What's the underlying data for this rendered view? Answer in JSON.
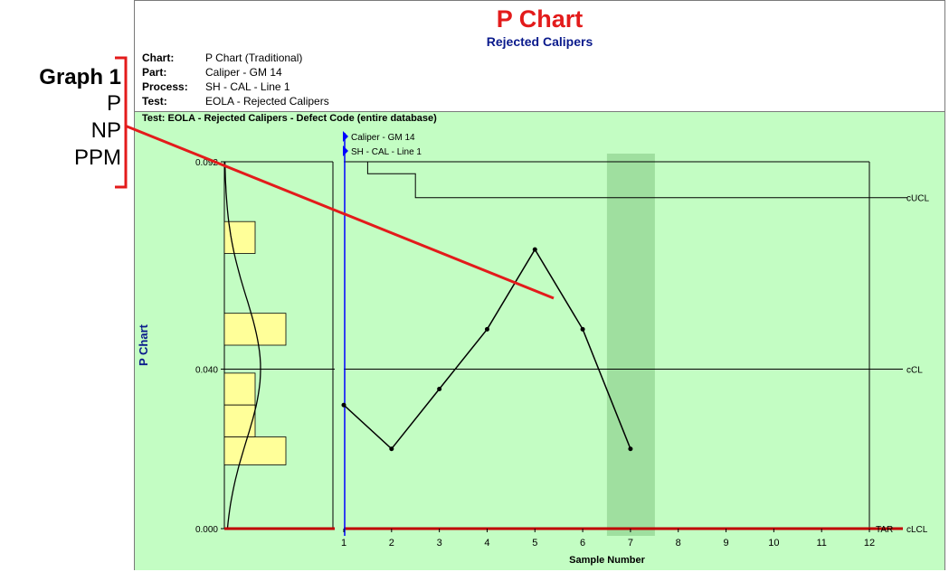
{
  "header": {
    "title": "P Chart",
    "subtitle": "Rejected Calipers"
  },
  "info": [
    {
      "label": "Chart:",
      "value": "P Chart (Traditional)"
    },
    {
      "label": "Part:",
      "value": "Caliper - GM 14"
    },
    {
      "label": "Process:",
      "value": "SH - CAL - Line 1"
    },
    {
      "label": "Test:",
      "value": "EOLA - Rejected Calipers"
    }
  ],
  "test_line": "Test: EOLA - Rejected Calipers - Defect Code (entire database)",
  "side_menu": {
    "graph": "Graph 1",
    "options": [
      "P",
      "NP",
      "PPM"
    ]
  },
  "chart_data": {
    "type": "line",
    "title": "P Chart",
    "subtitle": "Rejected Calipers",
    "xlabel": "Sample Number",
    "ylabel": "P Chart",
    "x": [
      1,
      2,
      3,
      4,
      5,
      6,
      7
    ],
    "series": [
      {
        "values": [
          0.031,
          0.02,
          0.035,
          0.05,
          0.07,
          0.05,
          0.02
        ]
      }
    ],
    "xticks": [
      1,
      2,
      3,
      4,
      5,
      6,
      7,
      8,
      9,
      10,
      11,
      12
    ],
    "yticks": [
      {
        "value": 0,
        "label": "0.000"
      },
      {
        "value": 0.04,
        "label": "0.040"
      },
      {
        "value": 0.092,
        "label": "0.092"
      }
    ],
    "xlim": [
      1,
      12
    ],
    "ylim": [
      0,
      0.092
    ],
    "control_lines": [
      {
        "name": "cUCL",
        "steps": [
          [
            1,
            0.092
          ],
          [
            1.5,
            0.092
          ],
          [
            1.5,
            0.089
          ],
          [
            2.5,
            0.089
          ],
          [
            2.5,
            0.083
          ],
          [
            12.8,
            0.083
          ]
        ]
      },
      {
        "name": "cCL",
        "value": 0.04
      },
      {
        "name": "cLCL",
        "value": 0
      }
    ],
    "target_label": "TAR",
    "markers": [
      "Caliper - GM 14",
      "SH - CAL - Line 1"
    ],
    "highlight_x": 7,
    "histogram": {
      "bins": [
        {
          "y0": 0.069,
          "y1": 0.077,
          "count": 1
        },
        {
          "y0": 0.046,
          "y1": 0.054,
          "count": 2
        },
        {
          "y0": 0.031,
          "y1": 0.039,
          "count": 1
        },
        {
          "y0": 0.023,
          "y1": 0.031,
          "count": 1
        },
        {
          "y0": 0.016,
          "y1": 0.023,
          "count": 2
        }
      ],
      "curve_mean": 0.04,
      "curve_sd": 0.018
    },
    "grid": false,
    "colors": {
      "background": "#c3fdc3",
      "title": "#e31b1b",
      "subtitle": "#0a1a8c",
      "histogram": "#ffff99",
      "highlight": "#9fdf9f",
      "lcl_line": "#c00000",
      "vertical_marker": "#0000ff",
      "annotation": "#e31b1b"
    }
  }
}
